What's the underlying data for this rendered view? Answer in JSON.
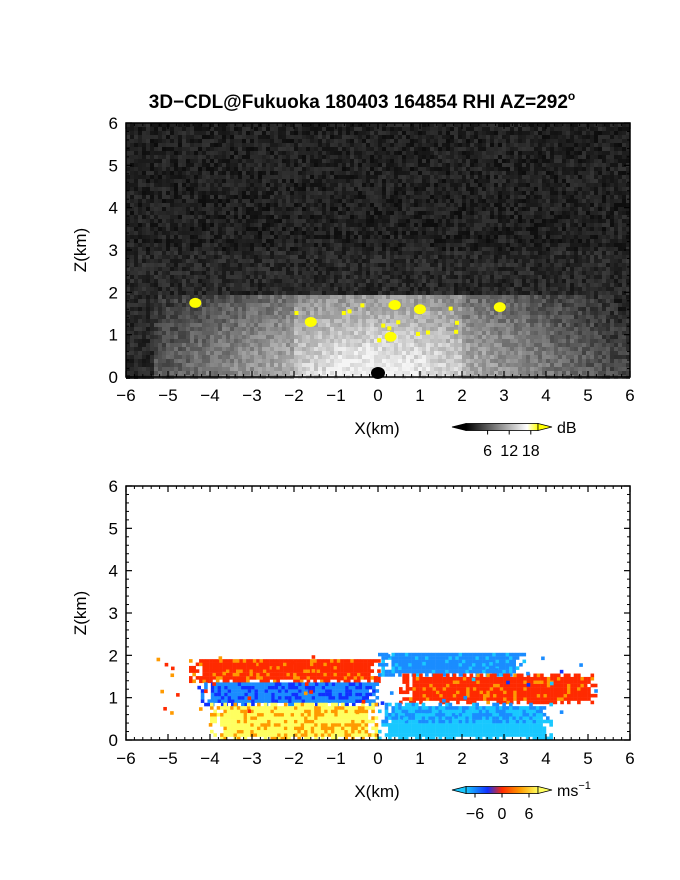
{
  "title": "3D−CDL@Fukuoka 180403 164854 RHI AZ=292",
  "title_superscript": "o",
  "chart_data": [
    {
      "type": "heatmap",
      "panel": "reflectivity",
      "xlabel": "X(km)",
      "ylabel": "Z(km)",
      "xlim": [
        -6,
        6
      ],
      "ylim": [
        0,
        6
      ],
      "xticks": [
        "−6",
        "−5",
        "−4",
        "−3",
        "−2",
        "−1",
        "0",
        "1",
        "2",
        "3",
        "4",
        "5",
        "6"
      ],
      "yticks": [
        "0",
        "1",
        "2",
        "3",
        "4",
        "5",
        "6"
      ],
      "colorscale": "grayscale with yellow above top",
      "colorbar": {
        "ticks": [
          "6",
          "12",
          "18"
        ],
        "unit": "dB",
        "range": [
          0,
          20
        ]
      },
      "features": [
        {
          "label": "layer top",
          "z": 1.85,
          "x_range": [
            -5.3,
            6
          ]
        },
        {
          "label": "bright cone",
          "x_range": [
            -2,
            2
          ],
          "z_range": [
            0,
            1.9
          ]
        },
        {
          "label": "yellow patches",
          "points": [
            [
              -4.35,
              1.75
            ],
            [
              -1.6,
              1.3
            ],
            [
              0.4,
              1.7
            ],
            [
              1.0,
              1.6
            ],
            [
              2.9,
              1.65
            ],
            [
              0.3,
              0.95
            ]
          ]
        }
      ]
    },
    {
      "type": "heatmap",
      "panel": "doppler velocity",
      "xlabel": "X(km)",
      "ylabel": "Z(km)",
      "xlim": [
        -6,
        6
      ],
      "ylim": [
        0,
        6
      ],
      "xticks": [
        "−6",
        "−5",
        "−4",
        "−3",
        "−2",
        "−1",
        "0",
        "1",
        "2",
        "3",
        "4",
        "5",
        "6"
      ],
      "yticks": [
        "0",
        "1",
        "2",
        "3",
        "4",
        "5",
        "6"
      ],
      "colorscale": "cyan-blue-red-yellow",
      "colorbar": {
        "ticks": [
          "−6",
          "0",
          "6"
        ],
        "unit": "ms",
        "unit_exponent": "−1",
        "range": [
          -8,
          8
        ]
      },
      "regions": [
        {
          "name": "upper-left",
          "x_range": [
            -4.5,
            0
          ],
          "z_range": [
            1.35,
            1.9
          ],
          "velocity": 2
        },
        {
          "name": "mid-left",
          "x_range": [
            -4.3,
            0
          ],
          "z_range": [
            0.8,
            1.35
          ],
          "velocity": -3
        },
        {
          "name": "lower-left",
          "x_range": [
            -4.0,
            0
          ],
          "z_range": [
            0,
            0.8
          ],
          "velocity": 5
        },
        {
          "name": "upper-right",
          "x_range": [
            0,
            3.5
          ],
          "z_range": [
            1.5,
            2.05
          ],
          "velocity": -4
        },
        {
          "name": "mid-right",
          "x_range": [
            0.5,
            5.2
          ],
          "z_range": [
            0.85,
            1.55
          ],
          "velocity": 2
        },
        {
          "name": "lower-right",
          "x_range": [
            0,
            4.1
          ],
          "z_range": [
            0,
            0.85
          ],
          "velocity": -5
        }
      ]
    }
  ],
  "colors": {
    "gray_low": "#1a1a1a",
    "gray_high": "#f0f0f0",
    "yellow": "#ffff00",
    "cyan": "#19c8ff",
    "blue": "#1030ff",
    "red": "#ff2a00",
    "orange": "#ff9a00",
    "light_yellow": "#ffff60"
  }
}
